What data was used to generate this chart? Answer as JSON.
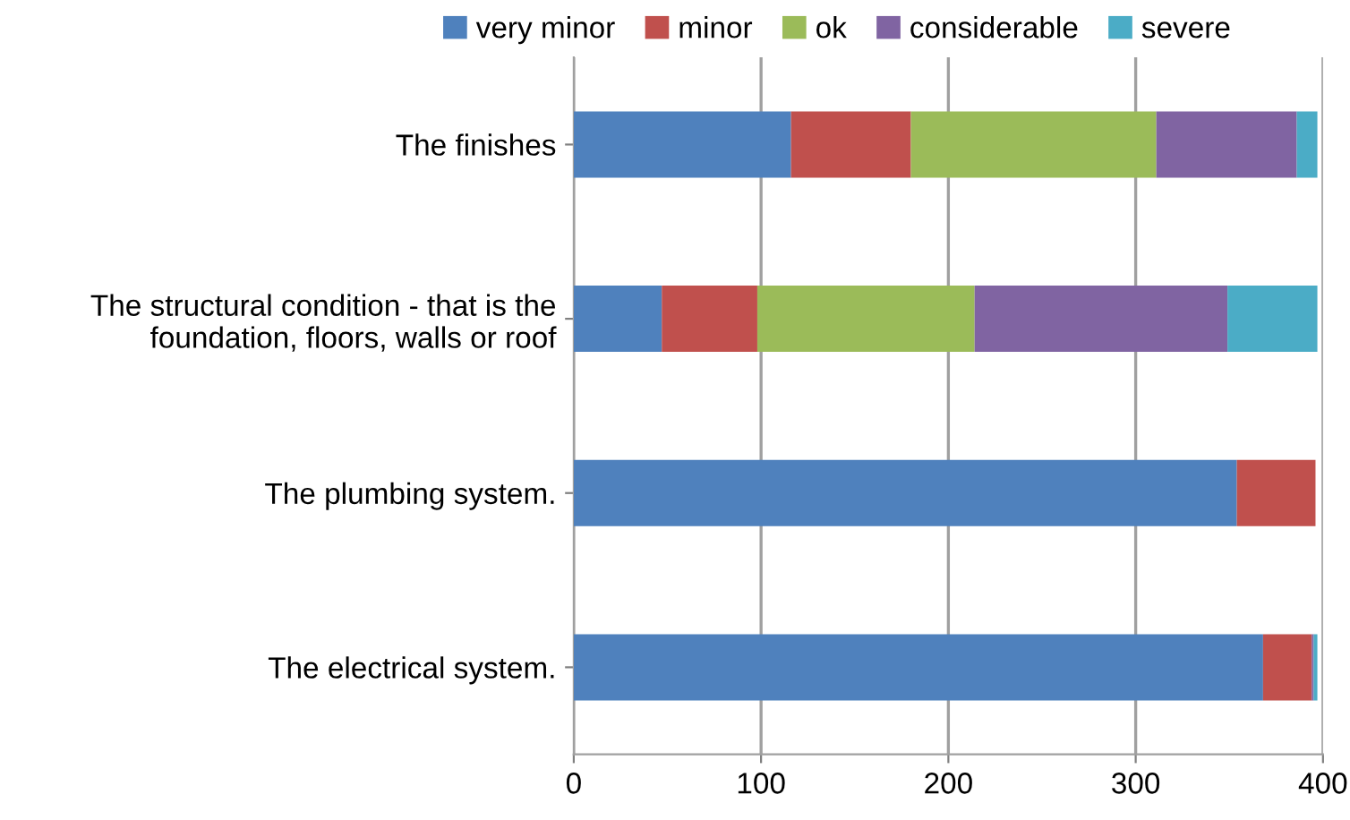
{
  "chart_data": {
    "type": "bar",
    "orientation": "horizontal",
    "stacked": true,
    "categories": [
      "The finishes",
      "The structural condition - that is the foundation, floors, walls or roof",
      "The plumbing system.",
      "The electrical system."
    ],
    "series": [
      {
        "name": "very minor",
        "color": "#4f81bd",
        "values": [
          116,
          47,
          354,
          368
        ]
      },
      {
        "name": "minor",
        "color": "#c0504d",
        "values": [
          64,
          51,
          42,
          26
        ]
      },
      {
        "name": "ok",
        "color": "#9bbb59",
        "values": [
          131,
          116,
          null,
          null
        ]
      },
      {
        "name": "considerable",
        "color": "#8064a2",
        "values": [
          75,
          135,
          null,
          1
        ]
      },
      {
        "name": "severe",
        "color": "#4bacc6",
        "values": [
          11,
          48,
          null,
          2
        ]
      }
    ],
    "xlim": [
      0,
      400
    ],
    "xticks": [
      0,
      100,
      200,
      300,
      400
    ],
    "grid": "x",
    "legend": "top"
  }
}
